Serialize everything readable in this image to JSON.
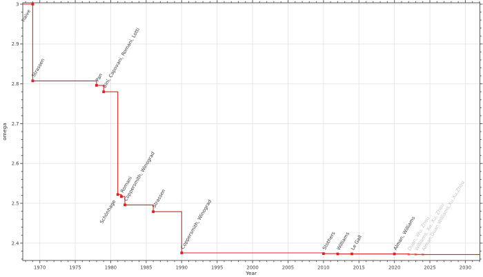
{
  "chart_data": {
    "type": "line",
    "subtype": "step-post",
    "title": "",
    "xlabel": "Year",
    "ylabel": "omega",
    "xlim": [
      1967.6,
      2032.05
    ],
    "ylim": [
      2.3565,
      3.0035
    ],
    "x_major_ticks": [
      1970,
      1975,
      1980,
      1985,
      1990,
      1995,
      2000,
      2005,
      2010,
      2015,
      2020,
      2025,
      2030
    ],
    "x_minor_step": 1,
    "y_major_ticks": [
      2.4,
      2.5,
      2.6,
      2.7,
      2.8,
      2.9,
      3.0
    ],
    "y_minor_step": 0.02,
    "grid": "major-only",
    "legend": "none",
    "colors": {
      "line": "#e02020",
      "marker": "#e02020",
      "faded_marker_opacity": 0.32,
      "label": "#3d3d3d",
      "faded_label": "#c2c2c2",
      "grid": "#e7e7e7",
      "spine": "#555555",
      "tick": "#555555",
      "background": "#ffffff"
    },
    "label_rotation_deg": -60,
    "points": [
      {
        "year": 1969,
        "omega": 3.0,
        "label": "naive",
        "placement": "below",
        "faded": false
      },
      {
        "year": 1969,
        "omega": 2.8074,
        "label": "Strassen",
        "placement": "above",
        "faded": false
      },
      {
        "year": 1978,
        "omega": 2.796,
        "label": "Pan",
        "placement": "above",
        "faded": false
      },
      {
        "year": 1979,
        "omega": 2.78,
        "label": "Bini, Capovani, Romani, Lotti",
        "placement": "above",
        "faded": false
      },
      {
        "year": 1981,
        "omega": 2.522,
        "label": "Schönhage",
        "placement": "below",
        "faded": false
      },
      {
        "year": 1981.5,
        "omega": 2.517,
        "label": "Romani",
        "placement": "above",
        "faded": false
      },
      {
        "year": 1982,
        "omega": 2.496,
        "label": "Coppersmith, Winograd",
        "placement": "above",
        "faded": false
      },
      {
        "year": 1986,
        "omega": 2.479,
        "label": "Strassen",
        "placement": "above",
        "faded": false
      },
      {
        "year": 1990,
        "omega": 2.3755,
        "label": "Coppersmith, Winograd",
        "placement": "above",
        "faded": false
      },
      {
        "year": 2010,
        "omega": 2.3737,
        "label": "Stothers",
        "placement": "above",
        "faded": false
      },
      {
        "year": 2012,
        "omega": 2.3729,
        "label": "Williams",
        "placement": "above",
        "faded": false
      },
      {
        "year": 2014,
        "omega": 2.37286,
        "label": "Le Gall",
        "placement": "above",
        "faded": false
      },
      {
        "year": 2020,
        "omega": 2.37286,
        "label": "Alman, Williams",
        "placement": "above",
        "faded": false
      },
      {
        "year": 2022,
        "omega": 2.37188,
        "label": "Duan, Wu, Zhou",
        "placement": "above",
        "faded": true
      },
      {
        "year": 2023,
        "omega": 2.37155,
        "label": "Williams, Xu, Xu, Zhou",
        "placement": "above",
        "faded": true
      },
      {
        "year": 2024,
        "omega": 2.37134,
        "label": "Alman,Duan,Williams,Xu,Xu,Zhou",
        "placement": "above",
        "faded": true
      }
    ]
  }
}
